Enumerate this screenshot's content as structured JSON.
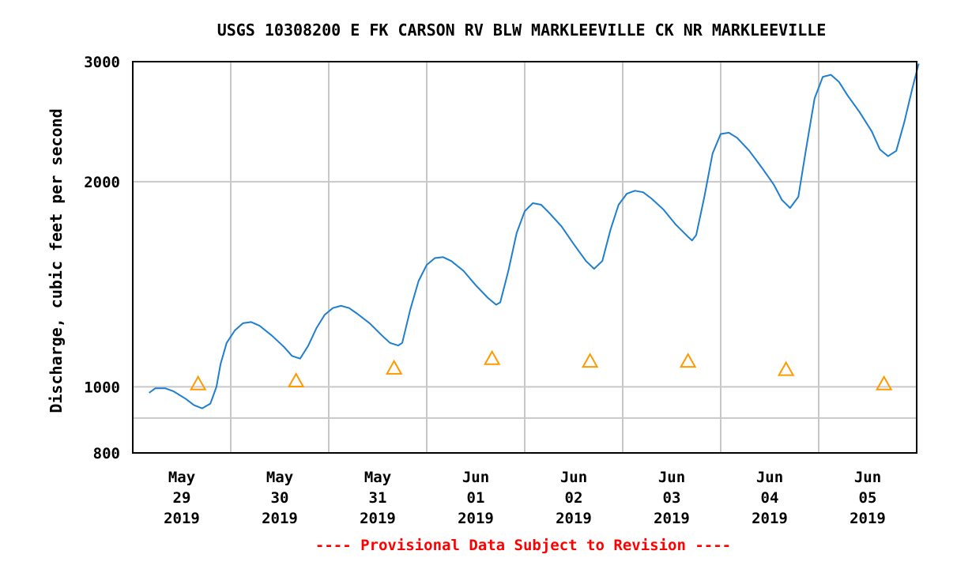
{
  "chart_data": {
    "type": "line",
    "title": "USGS 10308200 E FK CARSON RV BLW MARKLEEVILLE CK NR MARKLEEVILLE",
    "xlabel": "",
    "ylabel": "Discharge, cubic feet per second",
    "ylim": [
      800,
      3000
    ],
    "y_scale": "log",
    "y_ticks": [
      {
        "value": 800,
        "label": "800"
      },
      {
        "value": 1000,
        "label": "1000"
      },
      {
        "value": 2000,
        "label": "2000"
      },
      {
        "value": 3000,
        "label": "3000"
      }
    ],
    "y_minor_gridlines": [
      900
    ],
    "x_ticks": [
      {
        "month": "May",
        "day": "29",
        "year": "2019"
      },
      {
        "month": "May",
        "day": "30",
        "year": "2019"
      },
      {
        "month": "May",
        "day": "31",
        "year": "2019"
      },
      {
        "month": "Jun",
        "day": "01",
        "year": "2019"
      },
      {
        "month": "Jun",
        "day": "02",
        "year": "2019"
      },
      {
        "month": "Jun",
        "day": "03",
        "year": "2019"
      },
      {
        "month": "Jun",
        "day": "04",
        "year": "2019"
      },
      {
        "month": "Jun",
        "day": "05",
        "year": "2019"
      }
    ],
    "grid": true,
    "series": [
      {
        "type": "line",
        "color": "#1f7fcf",
        "points": [
          [
            "2019-05-29 00:00",
            980
          ],
          [
            "2019-05-29 01:30",
            995
          ],
          [
            "2019-05-29 04:00",
            995
          ],
          [
            "2019-05-29 06:00",
            985
          ],
          [
            "2019-05-29 09:00",
            960
          ],
          [
            "2019-05-29 11:00",
            940
          ],
          [
            "2019-05-29 13:00",
            930
          ],
          [
            "2019-05-29 15:00",
            945
          ],
          [
            "2019-05-29 16:30",
            1000
          ],
          [
            "2019-05-29 17:30",
            1080
          ],
          [
            "2019-05-29 19:00",
            1160
          ],
          [
            "2019-05-29 21:00",
            1210
          ],
          [
            "2019-05-29 23:00",
            1240
          ],
          [
            "2019-05-30 01:00",
            1245
          ],
          [
            "2019-05-30 03:00",
            1230
          ],
          [
            "2019-05-30 06:00",
            1190
          ],
          [
            "2019-05-30 09:00",
            1145
          ],
          [
            "2019-05-30 11:00",
            1110
          ],
          [
            "2019-05-30 13:00",
            1100
          ],
          [
            "2019-05-30 15:00",
            1150
          ],
          [
            "2019-05-30 17:00",
            1220
          ],
          [
            "2019-05-30 19:00",
            1275
          ],
          [
            "2019-05-30 21:00",
            1305
          ],
          [
            "2019-05-30 23:00",
            1315
          ],
          [
            "2019-05-31 01:00",
            1305
          ],
          [
            "2019-05-31 03:00",
            1280
          ],
          [
            "2019-05-31 06:00",
            1240
          ],
          [
            "2019-05-31 09:00",
            1190
          ],
          [
            "2019-05-31 11:00",
            1160
          ],
          [
            "2019-05-31 13:00",
            1150
          ],
          [
            "2019-05-31 14:00",
            1160
          ],
          [
            "2019-05-31 16:00",
            1300
          ],
          [
            "2019-05-31 18:00",
            1430
          ],
          [
            "2019-05-31 20:00",
            1510
          ],
          [
            "2019-05-31 22:00",
            1545
          ],
          [
            "2019-06-01 00:00",
            1550
          ],
          [
            "2019-06-01 02:00",
            1530
          ],
          [
            "2019-06-01 05:00",
            1480
          ],
          [
            "2019-06-01 08:00",
            1410
          ],
          [
            "2019-06-01 11:00",
            1350
          ],
          [
            "2019-06-01 13:00",
            1320
          ],
          [
            "2019-06-01 14:00",
            1330
          ],
          [
            "2019-06-01 16:00",
            1480
          ],
          [
            "2019-06-01 18:00",
            1680
          ],
          [
            "2019-06-01 20:00",
            1810
          ],
          [
            "2019-06-01 22:00",
            1860
          ],
          [
            "2019-06-02 00:00",
            1850
          ],
          [
            "2019-06-02 02:00",
            1800
          ],
          [
            "2019-06-02 05:00",
            1720
          ],
          [
            "2019-06-02 08:00",
            1620
          ],
          [
            "2019-06-02 11:00",
            1530
          ],
          [
            "2019-06-02 13:00",
            1490
          ],
          [
            "2019-06-02 15:00",
            1530
          ],
          [
            "2019-06-02 17:00",
            1700
          ],
          [
            "2019-06-02 19:00",
            1850
          ],
          [
            "2019-06-02 21:00",
            1920
          ],
          [
            "2019-06-02 23:00",
            1940
          ],
          [
            "2019-06-03 01:00",
            1930
          ],
          [
            "2019-06-03 03:00",
            1890
          ],
          [
            "2019-06-03 06:00",
            1820
          ],
          [
            "2019-06-03 09:00",
            1730
          ],
          [
            "2019-06-03 12:00",
            1660
          ],
          [
            "2019-06-03 13:00",
            1640
          ],
          [
            "2019-06-03 14:00",
            1670
          ],
          [
            "2019-06-03 16:00",
            1900
          ],
          [
            "2019-06-03 18:00",
            2200
          ],
          [
            "2019-06-03 20:00",
            2350
          ],
          [
            "2019-06-03 22:00",
            2360
          ],
          [
            "2019-06-04 00:00",
            2320
          ],
          [
            "2019-06-04 03:00",
            2220
          ],
          [
            "2019-06-04 06:00",
            2100
          ],
          [
            "2019-06-04 09:00",
            1980
          ],
          [
            "2019-06-04 11:00",
            1880
          ],
          [
            "2019-06-04 13:00",
            1830
          ],
          [
            "2019-06-04 15:00",
            1900
          ],
          [
            "2019-06-04 17:00",
            2250
          ],
          [
            "2019-06-04 19:00",
            2650
          ],
          [
            "2019-06-04 21:00",
            2850
          ],
          [
            "2019-06-04 23:00",
            2870
          ],
          [
            "2019-06-05 01:00",
            2800
          ],
          [
            "2019-06-05 03:00",
            2680
          ],
          [
            "2019-06-05 06:00",
            2530
          ],
          [
            "2019-06-05 09:00",
            2370
          ],
          [
            "2019-06-05 11:00",
            2230
          ],
          [
            "2019-06-05 13:00",
            2180
          ],
          [
            "2019-06-05 15:00",
            2220
          ],
          [
            "2019-06-05 17:00",
            2450
          ],
          [
            "2019-06-05 19:00",
            2750
          ],
          [
            "2019-06-05 20:30",
            2980
          ]
        ]
      },
      {
        "type": "scatter",
        "marker": "triangle",
        "color": "#ff9900",
        "points": [
          [
            "2019-05-29 12:00",
            1010
          ],
          [
            "2019-05-30 12:00",
            1020
          ],
          [
            "2019-05-31 12:00",
            1065
          ],
          [
            "2019-06-01 12:00",
            1100
          ],
          [
            "2019-06-02 12:00",
            1090
          ],
          [
            "2019-06-03 12:00",
            1090
          ],
          [
            "2019-06-04 12:00",
            1060
          ],
          [
            "2019-06-05 12:00",
            1010
          ]
        ]
      }
    ],
    "footnote": "---- Provisional Data Subject to Revision ----"
  }
}
